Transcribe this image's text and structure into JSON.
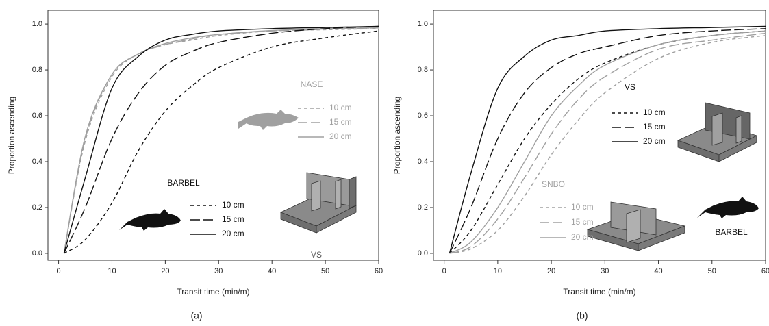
{
  "chart_data": [
    {
      "type": "line",
      "caption": "(a)",
      "xlabel": "Transit time (min/m)",
      "ylabel": "Proportion ascending",
      "xlim": [
        -2,
        60
      ],
      "ylim": [
        -0.03,
        1.06
      ],
      "xticks": [
        0,
        10,
        20,
        30,
        40,
        50,
        60
      ],
      "yticks": [
        {
          "value": 0,
          "label": "0.0"
        },
        0.2,
        0.4,
        0.6,
        0.8,
        {
          "value": 1,
          "label": "1.0"
        }
      ],
      "annotations": [
        "NASE",
        "BARBEL",
        "VS"
      ],
      "x": [
        1,
        5,
        10,
        15,
        20,
        25,
        30,
        40,
        50,
        60
      ],
      "series": [
        {
          "name": "10 cm",
          "color": "#a0a0a0",
          "dash": "5,4",
          "values": [
            0,
            0.49,
            0.77,
            0.87,
            0.91,
            0.93,
            0.95,
            0.97,
            0.975,
            0.98
          ]
        },
        {
          "name": "15 cm",
          "color": "#a0a0a0",
          "dash": "14,5",
          "values": [
            0,
            0.5,
            0.78,
            0.87,
            0.91,
            0.935,
            0.955,
            0.97,
            0.978,
            0.983
          ]
        },
        {
          "name": "20 cm",
          "color": "#a0a0a0",
          "dash": "",
          "values": [
            0,
            0.51,
            0.78,
            0.87,
            0.915,
            0.94,
            0.955,
            0.972,
            0.98,
            0.985
          ]
        },
        {
          "name": "10 cm",
          "color": "#111111",
          "dash": "5,4",
          "values": [
            0,
            0.06,
            0.22,
            0.45,
            0.62,
            0.73,
            0.81,
            0.9,
            0.94,
            0.97
          ]
        },
        {
          "name": "15 cm",
          "color": "#111111",
          "dash": "14,5",
          "values": [
            0,
            0.2,
            0.5,
            0.7,
            0.82,
            0.88,
            0.92,
            0.96,
            0.98,
            0.99
          ]
        },
        {
          "name": "20 cm",
          "color": "#111111",
          "dash": "",
          "values": [
            0,
            0.33,
            0.72,
            0.86,
            0.93,
            0.955,
            0.97,
            0.98,
            0.985,
            0.99
          ]
        }
      ]
    },
    {
      "type": "line",
      "caption": "(b)",
      "xlabel": "Transit time (min/m)",
      "ylabel": "Proportion ascending",
      "xlim": [
        -2,
        60
      ],
      "ylim": [
        -0.03,
        1.06
      ],
      "xticks": [
        0,
        10,
        20,
        30,
        40,
        50,
        60
      ],
      "yticks": [
        {
          "value": 0,
          "label": "0.0"
        },
        0.2,
        0.4,
        0.6,
        0.8,
        {
          "value": 1,
          "label": "1.0"
        }
      ],
      "annotations": [
        "VS",
        "SNBO",
        "BARBEL"
      ],
      "x": [
        1,
        5,
        10,
        15,
        20,
        25,
        30,
        40,
        50,
        60
      ],
      "series": [
        {
          "name": "10 cm",
          "color": "#111111",
          "dash": "5,4",
          "values": [
            0,
            0.1,
            0.3,
            0.5,
            0.65,
            0.76,
            0.83,
            0.91,
            0.95,
            0.97
          ]
        },
        {
          "name": "15 cm",
          "color": "#111111",
          "dash": "14,5",
          "values": [
            0,
            0.2,
            0.5,
            0.7,
            0.81,
            0.87,
            0.9,
            0.95,
            0.97,
            0.98
          ]
        },
        {
          "name": "20 cm",
          "color": "#111111",
          "dash": "",
          "values": [
            0,
            0.35,
            0.72,
            0.86,
            0.93,
            0.95,
            0.97,
            0.98,
            0.985,
            0.99
          ]
        },
        {
          "name": "10 cm",
          "color": "#a0a0a0",
          "dash": "5,4",
          "values": [
            0,
            0.02,
            0.1,
            0.25,
            0.43,
            0.58,
            0.7,
            0.85,
            0.92,
            0.95
          ]
        },
        {
          "name": "15 cm",
          "color": "#a0a0a0",
          "dash": "14,5",
          "values": [
            0,
            0.03,
            0.15,
            0.33,
            0.52,
            0.67,
            0.77,
            0.89,
            0.93,
            0.96
          ]
        },
        {
          "name": "20 cm",
          "color": "#a0a0a0",
          "dash": "",
          "values": [
            0,
            0.05,
            0.2,
            0.4,
            0.6,
            0.73,
            0.82,
            0.91,
            0.95,
            0.97
          ]
        }
      ]
    }
  ]
}
